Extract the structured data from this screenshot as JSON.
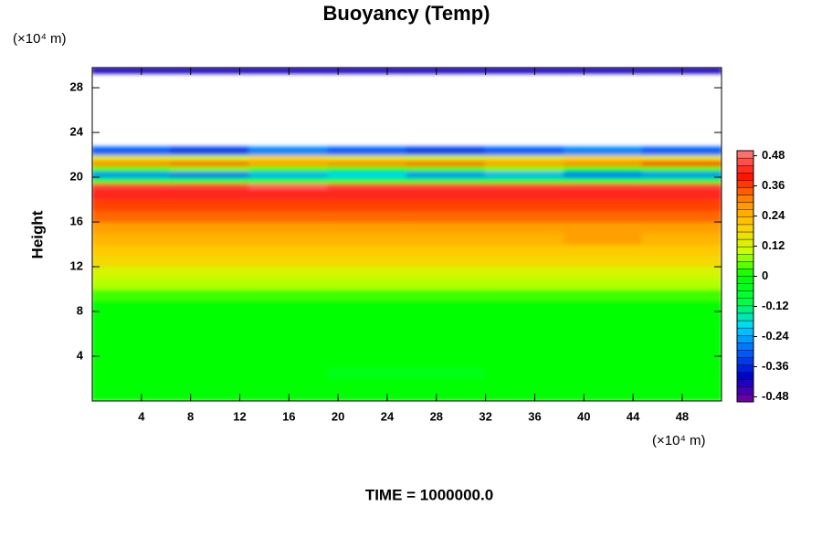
{
  "chart_data": {
    "type": "heatmap",
    "title": "Buoyancy (Temp)",
    "ylabel": "Height",
    "x_unit": "(×10⁴ m)",
    "y_unit": "(×10⁴ m)",
    "footer": "TIME = 1000000.0",
    "xlim": [
      0,
      51.2
    ],
    "ylim": [
      0,
      29.8
    ],
    "xticks": [
      4,
      8,
      12,
      16,
      20,
      24,
      28,
      32,
      36,
      40,
      44,
      48
    ],
    "yticks": [
      4,
      8,
      12,
      16,
      20,
      24,
      28
    ],
    "y_edges": [
      0,
      1,
      2,
      3,
      4,
      5,
      6,
      7,
      8,
      9,
      10,
      11,
      12,
      13,
      14,
      15,
      16,
      17,
      18,
      19,
      19.5,
      20,
      20.5,
      21,
      21.5,
      22,
      22.7,
      29.3,
      29.8
    ],
    "z": [
      [
        0,
        0,
        0,
        0,
        0,
        0,
        0,
        0
      ],
      [
        0,
        0,
        0,
        0,
        0,
        0,
        0,
        0
      ],
      [
        0,
        0,
        0,
        -0.03,
        -0.03,
        0,
        0,
        0
      ],
      [
        0,
        0,
        0,
        0,
        0,
        0,
        0,
        0
      ],
      [
        0,
        0,
        0,
        0,
        0,
        0,
        0,
        0
      ],
      [
        0,
        0,
        0,
        0,
        0,
        0,
        0,
        0
      ],
      [
        0,
        0,
        0,
        0,
        0,
        0,
        0,
        0
      ],
      [
        0,
        0,
        0,
        0,
        0,
        0,
        0,
        0
      ],
      [
        0,
        0,
        0,
        0,
        0,
        0,
        0,
        0
      ],
      [
        0.03,
        0.03,
        0.03,
        0.03,
        0.03,
        0.03,
        0.03,
        0.03
      ],
      [
        0.09,
        0.09,
        0.09,
        0.09,
        0.09,
        0.09,
        0.09,
        0.09
      ],
      [
        0.12,
        0.12,
        0.12,
        0.12,
        0.12,
        0.12,
        0.12,
        0.12
      ],
      [
        0.18,
        0.18,
        0.18,
        0.18,
        0.18,
        0.18,
        0.18,
        0.18
      ],
      [
        0.21,
        0.21,
        0.21,
        0.21,
        0.21,
        0.21,
        0.21,
        0.21
      ],
      [
        0.24,
        0.24,
        0.24,
        0.24,
        0.24,
        0.24,
        0.27,
        0.24
      ],
      [
        0.27,
        0.27,
        0.27,
        0.27,
        0.27,
        0.27,
        0.27,
        0.27
      ],
      [
        0.33,
        0.33,
        0.33,
        0.33,
        0.33,
        0.33,
        0.33,
        0.33
      ],
      [
        0.36,
        0.36,
        0.36,
        0.36,
        0.36,
        0.36,
        0.36,
        0.36
      ],
      [
        0.42,
        0.42,
        0.42,
        0.42,
        0.42,
        0.42,
        0.42,
        0.42
      ],
      [
        0.45,
        0.45,
        0.48,
        0.45,
        0.45,
        0.45,
        0.45,
        0.45
      ],
      [
        0,
        0,
        0,
        0,
        0,
        0,
        0,
        0
      ],
      [
        -0.27,
        -0.3,
        -0.24,
        -0.21,
        -0.27,
        -0.24,
        -0.3,
        -0.27
      ],
      [
        0.03,
        0.06,
        0.03,
        0,
        0.03,
        0.06,
        0,
        0.03
      ],
      [
        0.3,
        0.33,
        0.27,
        0.3,
        0.33,
        0.27,
        0.3,
        0.36
      ],
      [
        0.15,
        0.12,
        0.18,
        0.15,
        0.12,
        0.15,
        0.18,
        0.15
      ],
      [
        -0.3,
        -0.33,
        -0.27,
        -0.3,
        -0.33,
        -0.3,
        -0.27,
        -0.3
      ],
      [
        null,
        null,
        null,
        null,
        null,
        null,
        null,
        null
      ],
      [
        -0.42,
        -0.42,
        -0.42,
        -0.42,
        -0.42,
        -0.42,
        -0.42,
        -0.42
      ]
    ],
    "colorbar": {
      "lim": [
        -0.5,
        0.5
      ],
      "ticks": [
        -0.48,
        -0.36,
        -0.24,
        -0.12,
        0,
        0.12,
        0.24,
        0.36,
        0.48
      ],
      "colormap": [
        "#7a00a0",
        "#0000c8",
        "#0060ff",
        "#00d8ff",
        "#00ff40",
        "#00ff00",
        "#c8ff00",
        "#ffd000",
        "#ff8c00",
        "#ff1000",
        "#ff8080"
      ]
    }
  }
}
